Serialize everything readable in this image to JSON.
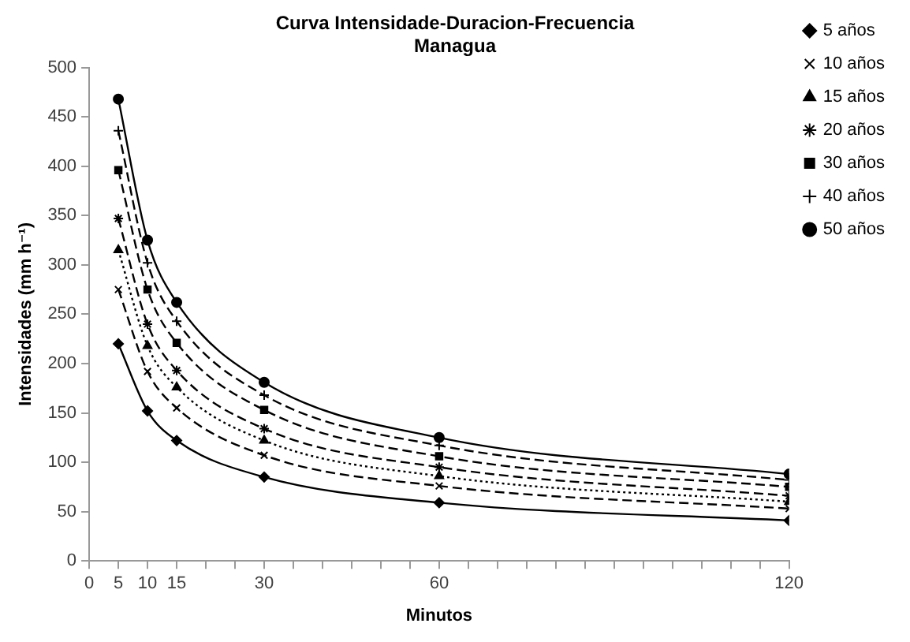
{
  "chart_data": {
    "type": "line",
    "title": "Curva Intensidade-Duracion-Frecuencia",
    "subtitle": "Managua",
    "xlabel": "Minutos",
    "ylabel": "Intensidades (mm h⁻¹)",
    "xlim": [
      0,
      120
    ],
    "xticks": [
      0,
      5,
      10,
      15,
      {
        "value": 20,
        "label": null
      },
      {
        "value": 25,
        "label": null
      },
      30,
      {
        "value": 35,
        "label": null
      },
      {
        "value": 40,
        "label": null
      },
      {
        "value": 45,
        "label": null
      },
      {
        "value": 50,
        "label": null
      },
      {
        "value": 55,
        "label": null
      },
      60,
      {
        "value": 65,
        "label": null
      },
      {
        "value": 70,
        "label": null
      },
      {
        "value": 75,
        "label": null
      },
      {
        "value": 80,
        "label": null
      },
      {
        "value": 85,
        "label": null
      },
      {
        "value": 90,
        "label": null
      },
      {
        "value": 95,
        "label": null
      },
      {
        "value": 100,
        "label": null
      },
      {
        "value": 105,
        "label": null
      },
      {
        "value": 110,
        "label": null
      },
      {
        "value": 115,
        "label": null
      },
      120
    ],
    "ylim": [
      0,
      500
    ],
    "yticks": [
      0,
      50,
      100,
      150,
      200,
      250,
      300,
      350,
      400,
      450,
      500
    ],
    "x": [
      5,
      10,
      15,
      30,
      60,
      120
    ],
    "grid": false,
    "legend": "right",
    "series": [
      {
        "name": "5 años",
        "color": "#000000",
        "marker": "diamond",
        "line_style": "solid",
        "values": [
          220,
          152,
          122,
          85,
          59,
          41
        ]
      },
      {
        "name": "10 años",
        "color": "#000000",
        "marker": "cross",
        "line_style": "dashed",
        "values": [
          275,
          192,
          155,
          107,
          76,
          53
        ]
      },
      {
        "name": "15 años",
        "color": "#000000",
        "marker": "triangle",
        "line_style": "dotted",
        "values": [
          315,
          218,
          176,
          122,
          86,
          60
        ]
      },
      {
        "name": "20 años",
        "color": "#000000",
        "marker": "cross",
        "line_style": "dashed",
        "values": [
          347,
          240,
          193,
          134,
          95,
          66
        ]
      },
      {
        "name": "30 años",
        "color": "#000000",
        "marker": "square",
        "line_style": "dashed",
        "values": [
          396,
          275,
          221,
          153,
          106,
          75
        ]
      },
      {
        "name": "40 años",
        "color": "#000000",
        "marker": "cross",
        "line_style": "dashed",
        "values": [
          436,
          302,
          243,
          168,
          117,
          82
        ]
      },
      {
        "name": "50 años",
        "color": "#000000",
        "marker": "circle",
        "line_style": "solid",
        "values": [
          468,
          325,
          262,
          181,
          125,
          88
        ]
      }
    ]
  }
}
